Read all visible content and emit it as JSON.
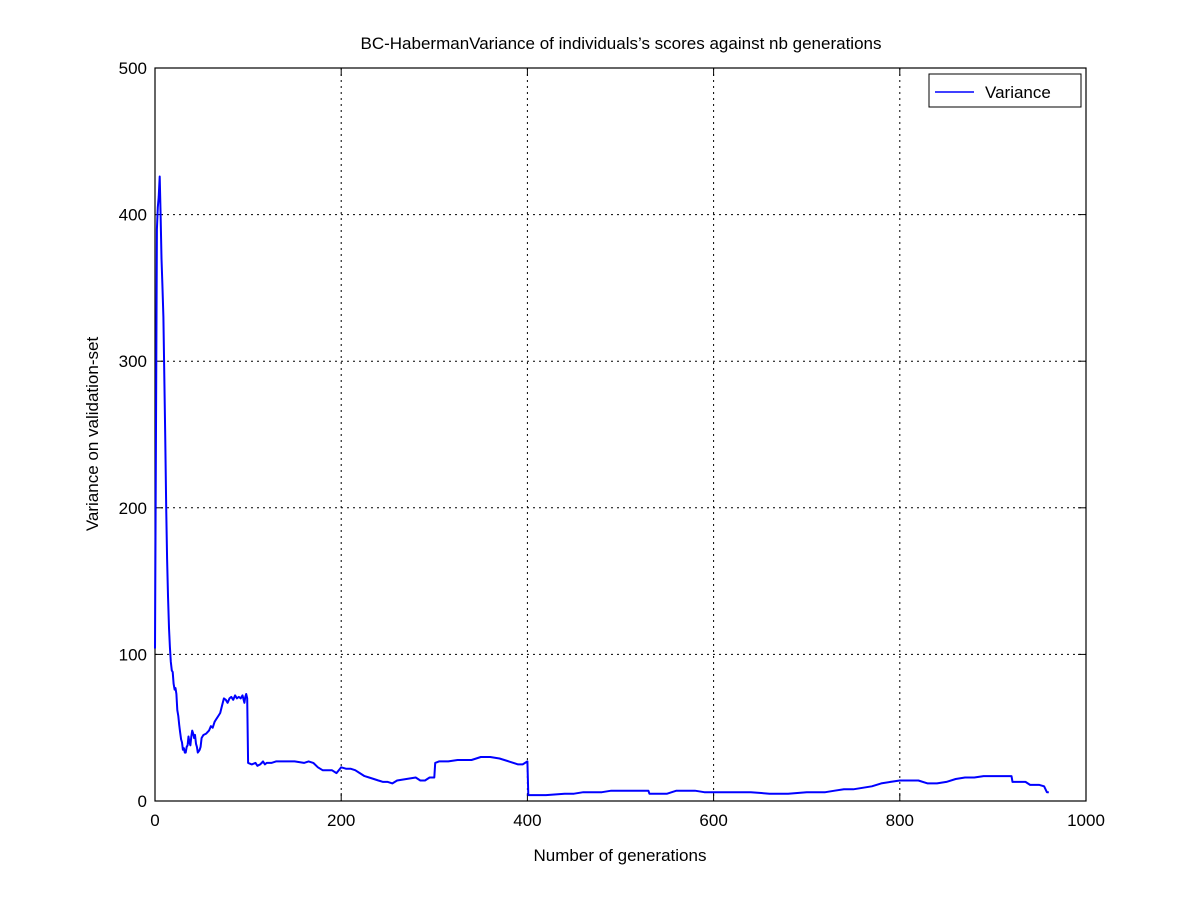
{
  "chart_data": {
    "type": "line",
    "title": "BC-HabermanVariance of individuals’s scores against nb generations",
    "xlabel": "Number of generations",
    "ylabel": "Variance on validation-set",
    "xlim": [
      0,
      1000
    ],
    "ylim": [
      0,
      500
    ],
    "xticks": [
      0,
      200,
      400,
      600,
      800,
      1000
    ],
    "yticks": [
      0,
      100,
      200,
      300,
      400,
      500
    ],
    "x_tick_labels": [
      "0",
      "200",
      "400",
      "600",
      "800",
      "1000"
    ],
    "y_tick_labels": [
      "0",
      "100",
      "200",
      "300",
      "400",
      "500"
    ],
    "grid": true,
    "legend_position": "top-right",
    "series": [
      {
        "name": "Variance",
        "color": "#0000ff",
        "points": [
          [
            0,
            104
          ],
          [
            1,
            240
          ],
          [
            2,
            390
          ],
          [
            3,
            405
          ],
          [
            4,
            412
          ],
          [
            5,
            426
          ],
          [
            6,
            400
          ],
          [
            7,
            370
          ],
          [
            8,
            352
          ],
          [
            9,
            330
          ],
          [
            10,
            290
          ],
          [
            11,
            250
          ],
          [
            12,
            200
          ],
          [
            13,
            165
          ],
          [
            14,
            140
          ],
          [
            15,
            118
          ],
          [
            16,
            105
          ],
          [
            17,
            95
          ],
          [
            18,
            89
          ],
          [
            19,
            88
          ],
          [
            20,
            80
          ],
          [
            21,
            76
          ],
          [
            22,
            77
          ],
          [
            23,
            73
          ],
          [
            24,
            62
          ],
          [
            25,
            58
          ],
          [
            26,
            52
          ],
          [
            27,
            47
          ],
          [
            28,
            42
          ],
          [
            29,
            40
          ],
          [
            30,
            35
          ],
          [
            31,
            36
          ],
          [
            32,
            33
          ],
          [
            33,
            33
          ],
          [
            34,
            37
          ],
          [
            35,
            38
          ],
          [
            36,
            44
          ],
          [
            37,
            40
          ],
          [
            38,
            38
          ],
          [
            39,
            44
          ],
          [
            40,
            48
          ],
          [
            41,
            46
          ],
          [
            42,
            43
          ],
          [
            43,
            45
          ],
          [
            44,
            39
          ],
          [
            45,
            37
          ],
          [
            46,
            33
          ],
          [
            47,
            34
          ],
          [
            48,
            35
          ],
          [
            49,
            37
          ],
          [
            50,
            43
          ],
          [
            52,
            45
          ],
          [
            55,
            46
          ],
          [
            58,
            48
          ],
          [
            60,
            51
          ],
          [
            62,
            50
          ],
          [
            64,
            54
          ],
          [
            66,
            56
          ],
          [
            68,
            58
          ],
          [
            70,
            60
          ],
          [
            72,
            65
          ],
          [
            74,
            70
          ],
          [
            76,
            69
          ],
          [
            78,
            67
          ],
          [
            80,
            70
          ],
          [
            82,
            71
          ],
          [
            84,
            69
          ],
          [
            86,
            72
          ],
          [
            88,
            70
          ],
          [
            90,
            71
          ],
          [
            92,
            70
          ],
          [
            94,
            72
          ],
          [
            96,
            67
          ],
          [
            97,
            71
          ],
          [
            98,
            73
          ],
          [
            99,
            70
          ],
          [
            100,
            26
          ],
          [
            104,
            25
          ],
          [
            108,
            26
          ],
          [
            110,
            24
          ],
          [
            113,
            25
          ],
          [
            116,
            27
          ],
          [
            118,
            25
          ],
          [
            120,
            26
          ],
          [
            125,
            26
          ],
          [
            130,
            27
          ],
          [
            140,
            27
          ],
          [
            150,
            27
          ],
          [
            160,
            26
          ],
          [
            165,
            27
          ],
          [
            170,
            26
          ],
          [
            175,
            23
          ],
          [
            180,
            21
          ],
          [
            190,
            21
          ],
          [
            195,
            19
          ],
          [
            200,
            23
          ],
          [
            205,
            22
          ],
          [
            210,
            22
          ],
          [
            215,
            21
          ],
          [
            220,
            19
          ],
          [
            225,
            17
          ],
          [
            230,
            16
          ],
          [
            235,
            15
          ],
          [
            240,
            14
          ],
          [
            245,
            13
          ],
          [
            250,
            13
          ],
          [
            255,
            12
          ],
          [
            260,
            14
          ],
          [
            270,
            15
          ],
          [
            280,
            16
          ],
          [
            285,
            14
          ],
          [
            290,
            14
          ],
          [
            295,
            16
          ],
          [
            300,
            16
          ],
          [
            301,
            26
          ],
          [
            305,
            27
          ],
          [
            315,
            27
          ],
          [
            325,
            28
          ],
          [
            330,
            28
          ],
          [
            340,
            28
          ],
          [
            345,
            29
          ],
          [
            350,
            30
          ],
          [
            360,
            30
          ],
          [
            370,
            29
          ],
          [
            380,
            27
          ],
          [
            390,
            25
          ],
          [
            395,
            25
          ],
          [
            400,
            27
          ],
          [
            401,
            4
          ],
          [
            420,
            4
          ],
          [
            440,
            5
          ],
          [
            450,
            5
          ],
          [
            460,
            6
          ],
          [
            480,
            6
          ],
          [
            490,
            7
          ],
          [
            500,
            7
          ],
          [
            520,
            7
          ],
          [
            530,
            7
          ],
          [
            531,
            5
          ],
          [
            550,
            5
          ],
          [
            560,
            7
          ],
          [
            580,
            7
          ],
          [
            590,
            6
          ],
          [
            600,
            6
          ],
          [
            620,
            6
          ],
          [
            640,
            6
          ],
          [
            660,
            5
          ],
          [
            680,
            5
          ],
          [
            700,
            6
          ],
          [
            720,
            6
          ],
          [
            730,
            7
          ],
          [
            740,
            8
          ],
          [
            750,
            8
          ],
          [
            760,
            9
          ],
          [
            770,
            10
          ],
          [
            780,
            12
          ],
          [
            790,
            13
          ],
          [
            800,
            14
          ],
          [
            810,
            14
          ],
          [
            820,
            14
          ],
          [
            830,
            12
          ],
          [
            840,
            12
          ],
          [
            850,
            13
          ],
          [
            860,
            15
          ],
          [
            870,
            16
          ],
          [
            880,
            16
          ],
          [
            890,
            17
          ],
          [
            900,
            17
          ],
          [
            910,
            17
          ],
          [
            920,
            17
          ],
          [
            921,
            13
          ],
          [
            935,
            13
          ],
          [
            940,
            11
          ],
          [
            950,
            11
          ],
          [
            955,
            10
          ],
          [
            958,
            6
          ],
          [
            960,
            6
          ]
        ]
      }
    ]
  }
}
